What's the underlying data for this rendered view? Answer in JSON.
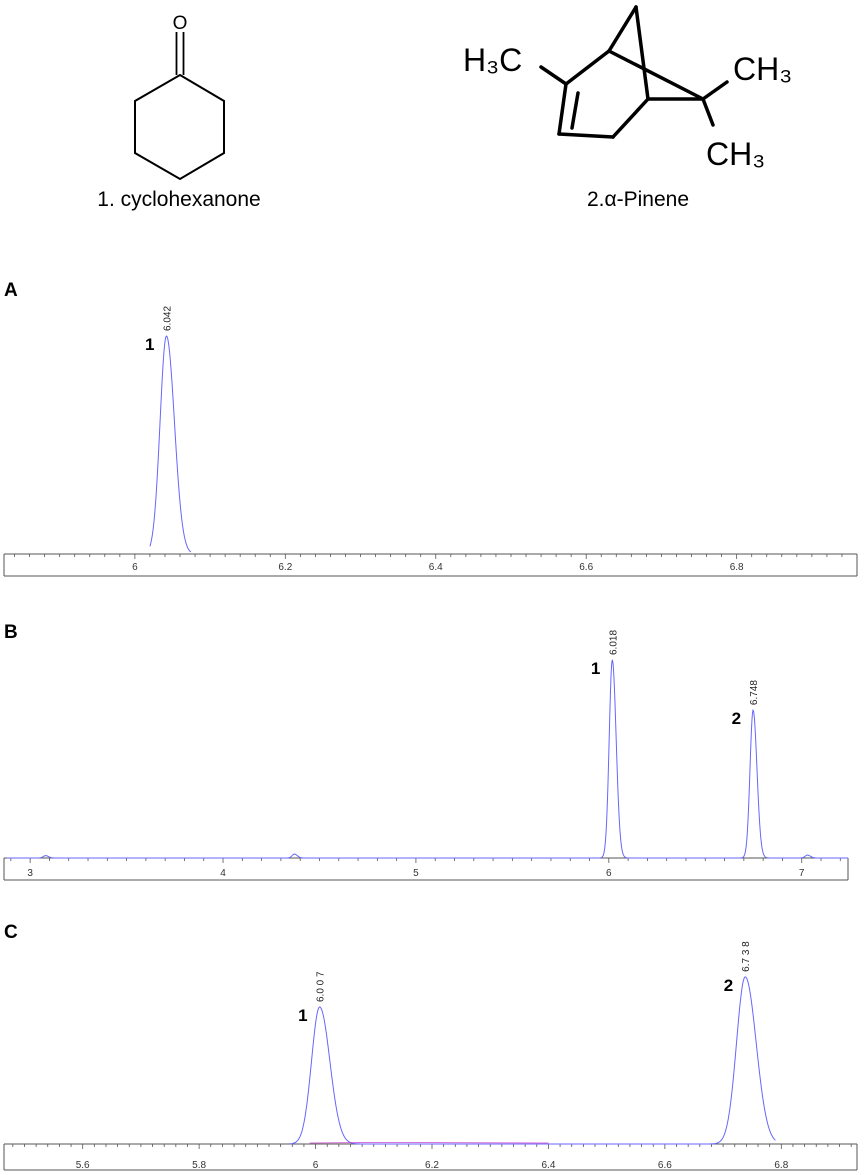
{
  "structures": [
    {
      "label": "1. cyclohexanone",
      "atom_label": "O"
    },
    {
      "label": "2.α-Pinene",
      "methyl_labels": [
        "H₃C",
        "CH₃",
        "CH₃"
      ]
    }
  ],
  "colors": {
    "trace": "#6666ff",
    "axis": "#555555",
    "text": "#000000",
    "baseline_tint": "#cc44cc"
  },
  "chart_data": [
    {
      "type": "line",
      "panel_label": "A",
      "title": "",
      "xlabel": "",
      "ylabel": "",
      "xlim": [
        5.83,
        6.96
      ],
      "x_ticks": [
        6,
        6.2,
        6.4,
        6.6,
        6.8
      ],
      "x_tick_labels": [
        "6",
        "6.2",
        "6.4",
        "6.6",
        "6.8"
      ],
      "series": [
        {
          "peaks": [
            {
              "rt": 6.042,
              "height": 1.0,
              "width": 0.0085
            }
          ]
        }
      ],
      "annotations": [
        {
          "x": 6.042,
          "text": "6.042",
          "peak_number": "1"
        }
      ]
    },
    {
      "type": "line",
      "panel_label": "B",
      "title": "",
      "xlabel": "",
      "ylabel": "",
      "xlim": [
        2.88,
        7.24
      ],
      "x_ticks": [
        3,
        4,
        5,
        6,
        7
      ],
      "x_tick_labels": [
        "3",
        "4",
        "5",
        "6",
        "7"
      ],
      "series": [
        {
          "peaks": [
            {
              "rt": 3.08,
              "height": 0.012,
              "width": 0.012
            },
            {
              "rt": 4.37,
              "height": 0.02,
              "width": 0.012
            },
            {
              "rt": 6.018,
              "height": 1.0,
              "width": 0.016
            },
            {
              "rt": 6.748,
              "height": 0.747,
              "width": 0.016
            },
            {
              "rt": 7.03,
              "height": 0.015,
              "width": 0.012
            }
          ]
        }
      ],
      "annotations": [
        {
          "x": 6.018,
          "text": "6.018",
          "peak_number": "1"
        },
        {
          "x": 6.748,
          "text": "6.748",
          "peak_number": "2"
        }
      ]
    },
    {
      "type": "line",
      "panel_label": "C",
      "title": "",
      "xlabel": "",
      "ylabel": "",
      "xlim": [
        5.47,
        6.93
      ],
      "x_ticks": [
        5.6,
        5.8,
        6,
        6.2,
        6.4,
        6.6,
        6.8
      ],
      "x_tick_labels": [
        "5.6",
        "5.8",
        "6",
        "6.2",
        "6.4",
        "6.6",
        "6.8"
      ],
      "series": [
        {
          "peaks": [
            {
              "rt": 6.007,
              "height": 1.0,
              "width": 0.014
            },
            {
              "rt": 6.738,
              "height": 1.22,
              "width": 0.015
            }
          ]
        }
      ],
      "annotations": [
        {
          "x": 6.007,
          "text": "6.0 0 7",
          "peak_number": "1"
        },
        {
          "x": 6.738,
          "text": "6.7 3 8",
          "peak_number": "2"
        }
      ]
    }
  ]
}
